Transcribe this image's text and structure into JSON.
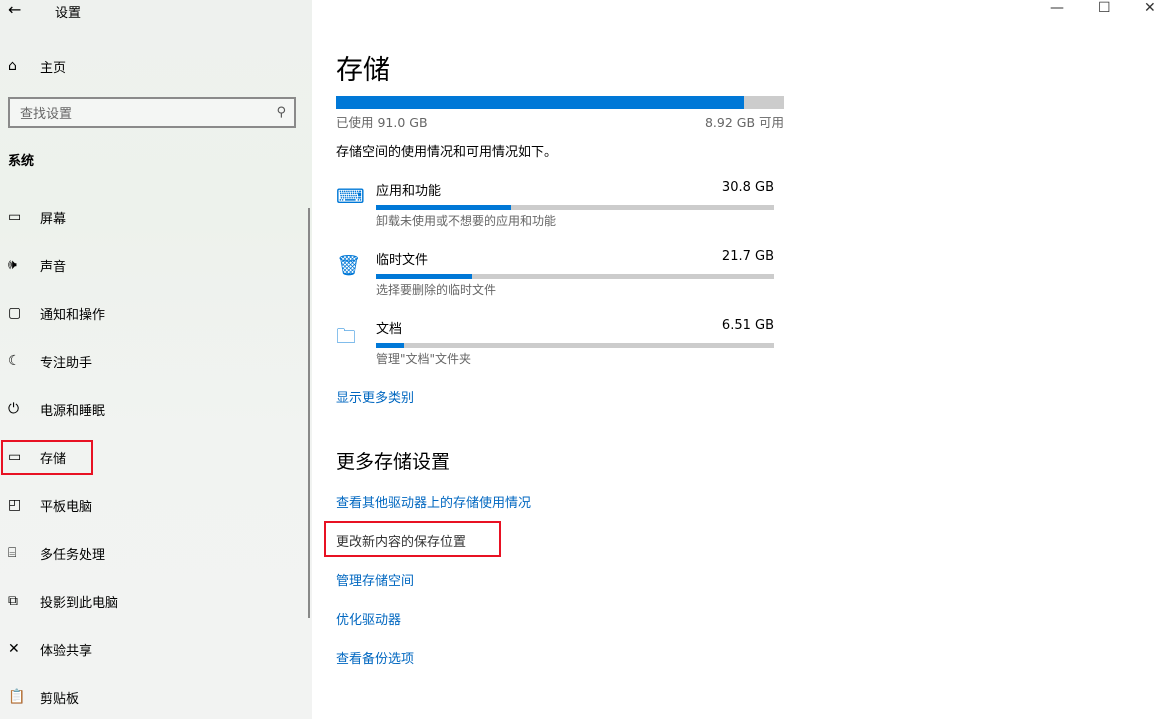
{
  "window": {
    "title": "设置",
    "back_icon": "back-arrow-icon",
    "controls": [
      "minimize-icon",
      "maximize-icon",
      "close-icon"
    ]
  },
  "sidebar": {
    "home_label": "主页",
    "search_placeholder": "查找设置",
    "section": "系统",
    "items": [
      {
        "label": "屏幕",
        "icon": "monitor-icon"
      },
      {
        "label": "声音",
        "icon": "speaker-icon"
      },
      {
        "label": "通知和操作",
        "icon": "notification-icon"
      },
      {
        "label": "专注助手",
        "icon": "moon-icon"
      },
      {
        "label": "电源和睡眠",
        "icon": "power-icon"
      },
      {
        "label": "存储",
        "icon": "storage-icon",
        "selected": true
      },
      {
        "label": "平板电脑",
        "icon": "tablet-icon"
      },
      {
        "label": "多任务处理",
        "icon": "multitask-icon"
      },
      {
        "label": "投影到此电脑",
        "icon": "project-icon"
      },
      {
        "label": "体验共享",
        "icon": "share-icon"
      },
      {
        "label": "剪贴板",
        "icon": "clipboard-icon"
      }
    ]
  },
  "main": {
    "title": "存储",
    "usage": {
      "used_label": "已使用 91.0 GB",
      "free_label": "8.92 GB 可用",
      "used_fraction": 0.911
    },
    "description": "存储空间的使用情况和可用情况如下。",
    "categories": [
      {
        "name": "应用和功能",
        "size": "30.8 GB",
        "desc": "卸载未使用或不想要的应用和功能",
        "fraction": 0.34,
        "icon": "keyboard-icon"
      },
      {
        "name": "临时文件",
        "size": "21.7 GB",
        "desc": "选择要删除的临时文件",
        "fraction": 0.24,
        "icon": "trash-icon"
      },
      {
        "name": "文档",
        "size": "6.51 GB",
        "desc": "管理\"文档\"文件夹",
        "fraction": 0.07,
        "icon": "folder-icon"
      }
    ],
    "show_more": "显示更多类别",
    "more_heading": "更多存储设置",
    "links": [
      "查看其他驱动器上的存储使用情况",
      "更改新内容的保存位置",
      "管理存储空间",
      "优化驱动器",
      "查看备份选项"
    ]
  },
  "colors": {
    "accent": "#0078d7",
    "highlight": "#e81123"
  }
}
